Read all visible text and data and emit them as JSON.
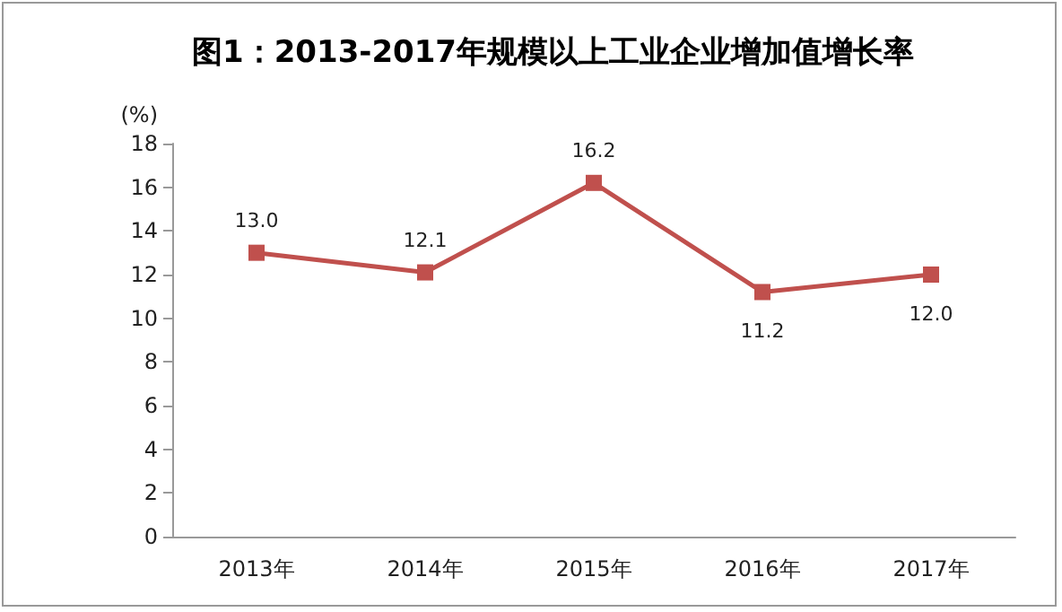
{
  "chart_data": {
    "type": "line",
    "title": "图1：2013-2017年规模以上工业企业增加值增长率",
    "ylabel": "(%)",
    "categories": [
      "2013年",
      "2014年",
      "2015年",
      "2016年",
      "2017年"
    ],
    "series": [
      {
        "color": "#c0504d",
        "values": [
          13.0,
          12.1,
          16.2,
          11.2,
          12.0
        ],
        "value_labels": [
          "13.0",
          "12.1",
          "16.2",
          "11.2",
          "12.0"
        ]
      }
    ],
    "ylim": [
      0,
      18
    ],
    "yticks": [
      0,
      2,
      4,
      6,
      8,
      10,
      12,
      14,
      16,
      18
    ],
    "grid": false,
    "marker": "square",
    "line_style": "solid"
  }
}
